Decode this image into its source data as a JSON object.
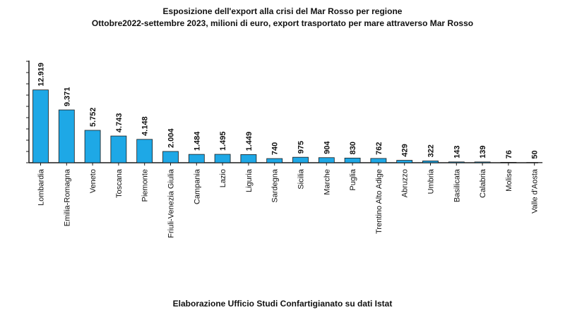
{
  "title": "Esposizione dell'export alla crisi del Mar Rosso per regione",
  "subtitle": "Ottobre2022-settembre 2023, milioni di euro, export trasportato per mare attraverso Mar Rosso",
  "source": "Elaborazione Ufficio Studi Confartigianato su dati Istat",
  "colors": {
    "bar": "#1ea8e6",
    "bar_stroke": "#1a1a1a",
    "axis": "#1a1a1a"
  },
  "chart_data": {
    "type": "bar",
    "title": "Esposizione dell'export alla crisi del Mar Rosso per regione",
    "subtitle": "Ottobre2022-settembre 2023, milioni di euro, export trasportato per mare attraverso Mar Rosso",
    "xlabel": "",
    "ylabel": "",
    "ylim": [
      0,
      18000
    ],
    "grid": false,
    "legend": "none",
    "categories": [
      "Lombardia",
      "Emilia-Romagna",
      "Veneto",
      "Toscana",
      "Piemonte",
      "Friuli-Venezia Giulia",
      "Campania",
      "Lazio",
      "Liguria",
      "Sardegna",
      "Sicilia",
      "Marche",
      "Puglia",
      "Trentino Alto Adige",
      "Abruzzo",
      "Umbria",
      "Basilicata",
      "Calabria",
      "Molise",
      "Valle d'Aosta"
    ],
    "values": [
      12919,
      9371,
      5752,
      4743,
      4148,
      2004,
      1484,
      1495,
      1449,
      740,
      975,
      904,
      830,
      762,
      429,
      322,
      143,
      139,
      76,
      50
    ],
    "value_labels": [
      "12.919",
      "9.371",
      "5.752",
      "4.743",
      "4.148",
      "2.004",
      "1.484",
      "1.495",
      "1.449",
      "740",
      "975",
      "904",
      "830",
      "762",
      "429",
      "322",
      "143",
      "139",
      "76",
      "50"
    ]
  }
}
